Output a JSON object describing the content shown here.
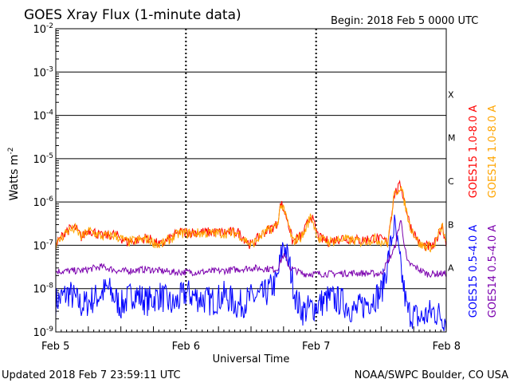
{
  "chart_data": {
    "type": "line",
    "title": "GOES Xray Flux (1-minute data)",
    "begin_text": "Begin:  2018 Feb 5 0000 UTC",
    "xlabel": "Universal Time",
    "ylabel": "Watts m",
    "ylabel_superscript": "-2",
    "yscale": "log",
    "ylim": [
      1e-09,
      0.01
    ],
    "y_ticks": [
      {
        "exp": -2
      },
      {
        "exp": -3
      },
      {
        "exp": -4
      },
      {
        "exp": -5
      },
      {
        "exp": -6
      },
      {
        "exp": -7
      },
      {
        "exp": -8
      },
      {
        "exp": -9
      }
    ],
    "x_days": [
      0,
      3
    ],
    "x_ticks": [
      {
        "label": "Feb 5",
        "day": 0
      },
      {
        "label": "Feb 6",
        "day": 1
      },
      {
        "label": "Feb 7",
        "day": 2
      },
      {
        "label": "Feb 8",
        "day": 3
      }
    ],
    "flare_classes": [
      {
        "label": "X",
        "exp": -3.5
      },
      {
        "label": "M",
        "exp": -4.5
      },
      {
        "label": "C",
        "exp": -5.5
      },
      {
        "label": "B",
        "exp": -6.5
      },
      {
        "label": "A",
        "exp": -7.5
      }
    ],
    "series": [
      {
        "name": "GOES15 1.0-8.0 A",
        "color": "#ff0000",
        "x": [
          0,
          0.08,
          0.15,
          0.2,
          0.25,
          0.3,
          0.35,
          0.45,
          0.55,
          0.7,
          0.8,
          0.95,
          1.1,
          1.2,
          1.3,
          1.4,
          1.5,
          1.6,
          1.7,
          1.73,
          1.78,
          1.82,
          1.9,
          1.96,
          2.02,
          2.1,
          2.2,
          2.35,
          2.45,
          2.55,
          2.6,
          2.65,
          2.72,
          2.8,
          2.9,
          2.97,
          3.0
        ],
        "values": [
          1e-07,
          2.2e-07,
          2.5e-07,
          1.5e-07,
          2.3e-07,
          2e-07,
          1.6e-07,
          1.8e-07,
          1.2e-07,
          1.5e-07,
          1e-07,
          2e-07,
          2e-07,
          2e-07,
          2e-07,
          2e-07,
          1e-07,
          2e-07,
          3e-07,
          9.5e-07,
          4e-07,
          1.2e-07,
          1.8e-07,
          5e-07,
          1.5e-07,
          1.2e-07,
          1.5e-07,
          1.3e-07,
          1.5e-07,
          1.2e-07,
          1.5e-06,
          2.5e-06,
          3e-07,
          1e-07,
          9e-08,
          3e-07,
          1e-07
        ]
      },
      {
        "name": "GOES14 1.0-8.0 A",
        "color": "#ffa500",
        "x": [
          0,
          0.08,
          0.15,
          0.2,
          0.25,
          0.3,
          0.35,
          0.45,
          0.55,
          0.7,
          0.8,
          0.95,
          1.1,
          1.2,
          1.3,
          1.4,
          1.5,
          1.6,
          1.7,
          1.73,
          1.78,
          1.82,
          1.9,
          1.96,
          2.02,
          2.1,
          2.2,
          2.35,
          2.45,
          2.55,
          2.6,
          2.65,
          2.72,
          2.8,
          2.9,
          2.97,
          3.0
        ],
        "values": [
          1e-07,
          2.1e-07,
          2.4e-07,
          1.5e-07,
          2.2e-07,
          1.9e-07,
          1.6e-07,
          1.7e-07,
          1.2e-07,
          1.4e-07,
          1e-07,
          1.9e-07,
          1.9e-07,
          1.9e-07,
          1.9e-07,
          1.9e-07,
          1e-07,
          1.9e-07,
          2.9e-07,
          9e-07,
          3.8e-07,
          1.2e-07,
          1.7e-07,
          4.8e-07,
          1.4e-07,
          1.2e-07,
          1.4e-07,
          1.2e-07,
          1.4e-07,
          1.1e-07,
          1.4e-06,
          2.4e-06,
          2.9e-07,
          1e-07,
          9e-08,
          2.8e-07,
          1e-07
        ]
      },
      {
        "name": "GOES15 0.5-4.0 A",
        "color": "#0000ff",
        "x": [
          0,
          0.1,
          0.2,
          0.3,
          0.4,
          0.5,
          0.6,
          0.7,
          0.8,
          0.9,
          1.0,
          1.1,
          1.2,
          1.3,
          1.4,
          1.5,
          1.6,
          1.7,
          1.75,
          1.8,
          1.85,
          1.9,
          2.0,
          2.1,
          2.2,
          2.3,
          2.4,
          2.5,
          2.55,
          2.6,
          2.65,
          2.7,
          2.8,
          2.9,
          3.0
        ],
        "values": [
          5e-09,
          8e-09,
          4e-09,
          6e-09,
          1e-08,
          4e-09,
          8e-09,
          5e-09,
          7e-09,
          4e-09,
          8e-09,
          6e-09,
          5e-09,
          7e-09,
          4e-09,
          6e-09,
          7e-09,
          1.5e-08,
          1.2e-07,
          3e-08,
          5e-09,
          3e-09,
          4e-09,
          6e-09,
          5e-09,
          3e-09,
          5e-09,
          8e-09,
          4e-08,
          3e-07,
          3e-08,
          3e-09,
          2e-09,
          3e-09,
          2e-09
        ]
      },
      {
        "name": "GOES14 0.5-4.0 A",
        "color": "#7b00ae",
        "x": [
          0,
          0.2,
          0.35,
          0.5,
          0.7,
          0.9,
          1.1,
          1.3,
          1.5,
          1.7,
          1.75,
          1.8,
          1.9,
          2.1,
          2.3,
          2.5,
          2.6,
          2.65,
          2.7,
          2.85,
          3.0
        ],
        "values": [
          2.5e-08,
          2.6e-08,
          3.2e-08,
          2.5e-08,
          2.8e-08,
          2.4e-08,
          2.4e-08,
          2.6e-08,
          3e-08,
          2.8e-08,
          6e-08,
          3e-08,
          2.2e-08,
          2.2e-08,
          2.3e-08,
          2.2e-08,
          8e-08,
          4e-07,
          4e-08,
          2.2e-08,
          2.2e-08
        ]
      }
    ]
  },
  "footer": {
    "updated": "Updated 2018 Feb  7 23:59:11 UTC",
    "source": "NOAA/SWPC Boulder, CO USA"
  }
}
